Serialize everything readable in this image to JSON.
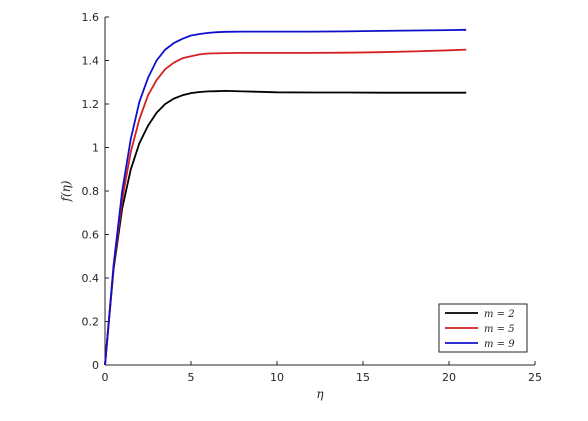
{
  "chart_data": {
    "type": "line",
    "xlabel": "η",
    "ylabel": "f(η)",
    "xlim": [
      0,
      25
    ],
    "ylim": [
      0,
      1.6
    ],
    "xticks": [
      0,
      5,
      10,
      15,
      20,
      25
    ],
    "xtick_labels": [
      "0",
      "5",
      "10",
      "15",
      "20",
      "25"
    ],
    "yticks": [
      0,
      0.2,
      0.4,
      0.6,
      0.8,
      1.0,
      1.2,
      1.4,
      1.6
    ],
    "ytick_labels": [
      "0",
      "0.2",
      "0.4",
      "0.6",
      "0.8",
      "1",
      "1.2",
      "1.4",
      "1.6"
    ],
    "grid": false,
    "legend_position": "bottom-right",
    "series": [
      {
        "name": "m = 2",
        "color": "#000000",
        "x": [
          0,
          0.5,
          1,
          1.5,
          2,
          2.5,
          3,
          3.5,
          4,
          4.5,
          5,
          5.5,
          6,
          6.5,
          7,
          8,
          9,
          10,
          12,
          14,
          16,
          18,
          20,
          21
        ],
        "y": [
          0,
          0.44,
          0.72,
          0.9,
          1.02,
          1.1,
          1.16,
          1.2,
          1.225,
          1.24,
          1.25,
          1.255,
          1.258,
          1.259,
          1.26,
          1.258,
          1.256,
          1.254,
          1.253,
          1.253,
          1.252,
          1.252,
          1.252,
          1.252
        ]
      },
      {
        "name": "m = 5",
        "color": "#d42020",
        "x": [
          0,
          0.5,
          1,
          1.5,
          2,
          2.5,
          3,
          3.5,
          4,
          4.5,
          5,
          5.5,
          6,
          7,
          8,
          10,
          12,
          14,
          16,
          18,
          20,
          21
        ],
        "y": [
          0,
          0.45,
          0.76,
          0.98,
          1.13,
          1.24,
          1.31,
          1.36,
          1.39,
          1.41,
          1.42,
          1.428,
          1.432,
          1.434,
          1.435,
          1.435,
          1.435,
          1.436,
          1.438,
          1.442,
          1.447,
          1.45
        ]
      },
      {
        "name": "m = 9",
        "color": "#1010cc",
        "x": [
          0,
          0.5,
          1,
          1.5,
          2,
          2.5,
          3,
          3.5,
          4,
          4.5,
          5,
          5.5,
          6,
          6.5,
          7,
          8,
          10,
          12,
          14,
          16,
          18,
          20,
          21
        ],
        "y": [
          0,
          0.46,
          0.8,
          1.04,
          1.21,
          1.32,
          1.4,
          1.45,
          1.48,
          1.5,
          1.515,
          1.522,
          1.527,
          1.53,
          1.532,
          1.533,
          1.533,
          1.533,
          1.534,
          1.536,
          1.538,
          1.54,
          1.541
        ]
      }
    ]
  }
}
